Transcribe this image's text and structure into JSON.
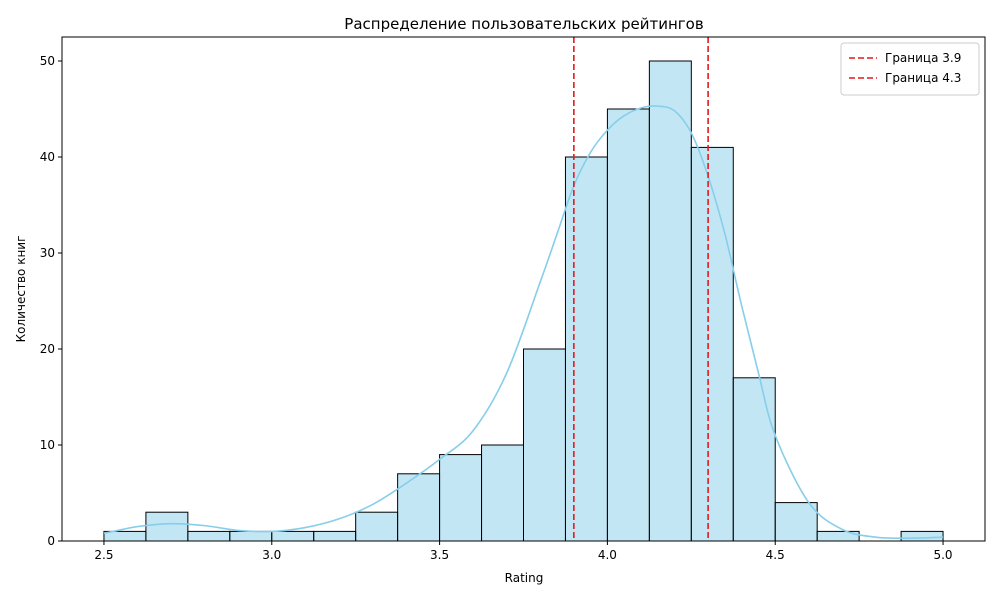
{
  "chart_data": {
    "type": "bar",
    "title": "Распределение пользовательских рейтингов",
    "xlabel": "Rating",
    "ylabel": "Количество книг",
    "xlim": [
      2.375,
      5.125
    ],
    "ylim": [
      0,
      52.5
    ],
    "xticks": [
      2.5,
      3.0,
      3.5,
      4.0,
      4.5,
      5.0
    ],
    "yticks": [
      0,
      10,
      20,
      30,
      40,
      50
    ],
    "bin_edges": [
      2.5,
      2.625,
      2.75,
      2.875,
      3.0,
      3.125,
      3.25,
      3.375,
      3.5,
      3.625,
      3.75,
      3.875,
      4.0,
      4.125,
      4.25,
      4.375,
      4.5,
      4.625,
      4.75,
      4.875,
      5.0
    ],
    "values": [
      1,
      3,
      1,
      1,
      1,
      1,
      3,
      7,
      9,
      10,
      20,
      40,
      45,
      50,
      41,
      17,
      4,
      1,
      0,
      1
    ],
    "bar_color": "#87ceeb",
    "bar_edge_color": "#000000",
    "kde": {
      "color": "#87ceeb",
      "x": [
        2.5,
        2.6,
        2.7,
        2.8,
        2.9,
        3.0,
        3.1,
        3.2,
        3.3,
        3.4,
        3.5,
        3.6,
        3.7,
        3.8,
        3.85,
        3.9,
        3.95,
        4.0,
        4.05,
        4.1,
        4.15,
        4.2,
        4.25,
        4.3,
        4.35,
        4.4,
        4.45,
        4.5,
        4.6,
        4.7,
        4.8,
        4.9,
        5.0
      ],
      "y": [
        0.8,
        1.5,
        1.8,
        1.6,
        1.1,
        1.0,
        1.4,
        2.3,
        3.8,
        6.0,
        8.5,
        11.5,
        17.5,
        27.0,
        32.0,
        37.0,
        40.5,
        42.8,
        44.3,
        45.1,
        45.3,
        44.8,
        42.5,
        38.0,
        32.0,
        24.5,
        17.5,
        11.0,
        4.0,
        1.2,
        0.4,
        0.3,
        0.4
      ]
    },
    "vlines": [
      {
        "x": 3.9,
        "label": "Граница 3.9",
        "color": "#e41a1c"
      },
      {
        "x": 4.3,
        "label": "Граница 4.3",
        "color": "#e41a1c"
      }
    ],
    "legend_position": "top-right",
    "grid": false
  }
}
